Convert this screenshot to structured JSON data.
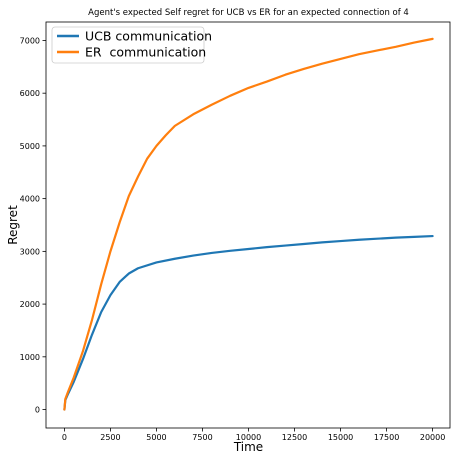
{
  "chart_data": {
    "type": "line",
    "title": "Agent's expected Self regret for UCB vs ER for an expected connection of 4",
    "xlabel": "Time",
    "ylabel": "Regret",
    "xlim": [
      -1000,
      21000
    ],
    "ylim": [
      -350,
      7350
    ],
    "xticks": [
      0,
      2500,
      5000,
      7500,
      10000,
      12500,
      15000,
      17500,
      20000
    ],
    "yticks": [
      0,
      1000,
      2000,
      3000,
      4000,
      5000,
      6000,
      7000
    ],
    "grid": false,
    "legend_position": "top-left",
    "series": [
      {
        "name": "UCB communication",
        "color": "#1f77b4",
        "x": [
          0,
          50,
          200,
          500,
          1000,
          1500,
          2000,
          2500,
          3000,
          3500,
          4000,
          5000,
          6000,
          7000,
          8000,
          9000,
          10000,
          11000,
          12000,
          13000,
          14000,
          15000,
          16000,
          17000,
          18000,
          19000,
          20000
        ],
        "y": [
          0,
          180,
          300,
          520,
          950,
          1420,
          1850,
          2170,
          2420,
          2580,
          2680,
          2790,
          2860,
          2920,
          2970,
          3010,
          3045,
          3080,
          3110,
          3140,
          3170,
          3195,
          3220,
          3240,
          3260,
          3275,
          3290
        ]
      },
      {
        "name": "ER  communication",
        "color": "#ff7f0e",
        "x": [
          0,
          50,
          200,
          500,
          1000,
          1500,
          2000,
          2500,
          3000,
          3500,
          4000,
          4500,
          5000,
          5500,
          6000,
          7000,
          8000,
          9000,
          10000,
          11000,
          12000,
          13000,
          14000,
          15000,
          16000,
          17000,
          18000,
          19000,
          20000
        ],
        "y": [
          0,
          200,
          340,
          600,
          1100,
          1700,
          2380,
          3000,
          3550,
          4050,
          4420,
          4760,
          5000,
          5200,
          5380,
          5600,
          5780,
          5950,
          6100,
          6220,
          6350,
          6460,
          6560,
          6650,
          6740,
          6810,
          6880,
          6960,
          7030
        ]
      }
    ]
  }
}
